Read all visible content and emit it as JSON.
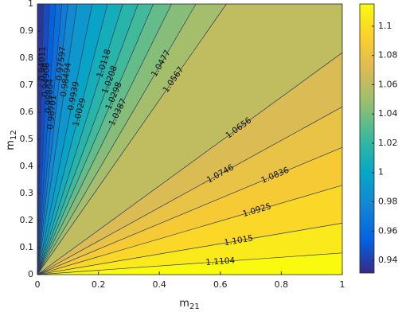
{
  "chart_data": {
    "type": "contour",
    "xlabel": [
      "m",
      "21"
    ],
    "ylabel": [
      "m",
      "12"
    ],
    "xlim": [
      0,
      1
    ],
    "ylim": [
      0,
      1
    ],
    "xticks": [
      0,
      0.2,
      0.4,
      0.6,
      0.8,
      1
    ],
    "yticks": [
      0,
      0.1,
      0.2,
      0.3,
      0.4,
      0.5,
      0.6,
      0.7,
      0.8,
      0.9,
      1
    ],
    "clim": [
      0.9313,
      1.1152
    ],
    "cticks": [
      0.94,
      0.96,
      0.98,
      1,
      1.02,
      1.04,
      1.06,
      1.08,
      1.1
    ],
    "colormap": [
      "#352a87",
      "#0363e1",
      "#1485d4",
      "#06a7c6",
      "#38b99e",
      "#92bf73",
      "#d9ba56",
      "#fcce2e",
      "#f9fb0e"
    ],
    "line_color": "#2b3a5c",
    "contours": [
      {
        "level": 0.94011,
        "end": [
          0.02,
          1
        ]
      },
      {
        "level": 0.94908,
        "end": [
          0.04,
          1
        ]
      },
      {
        "level": 0.95804,
        "end": [
          0.06,
          1
        ]
      },
      {
        "level": 0.96701,
        "end": [
          0.08,
          1
        ]
      },
      {
        "level": 0.97597,
        "end": [
          0.1,
          1
        ]
      },
      {
        "level": 0.98494,
        "end": [
          0.13,
          1
        ]
      },
      {
        "level": 0.9939,
        "end": [
          0.18,
          1
        ]
      },
      {
        "level": 1.0029,
        "end": [
          0.23,
          1
        ]
      },
      {
        "level": 1.0118,
        "end": [
          0.28,
          1
        ]
      },
      {
        "level": 1.0208,
        "end": [
          0.33,
          1
        ]
      },
      {
        "level": 1.0298,
        "end": [
          0.38,
          1
        ]
      },
      {
        "level": 1.0387,
        "end": [
          0.44,
          1
        ]
      },
      {
        "level": 1.0477,
        "end": [
          0.52,
          1
        ]
      },
      {
        "level": 1.0567,
        "end": [
          0.62,
          1
        ]
      },
      {
        "level": 1.0656,
        "end": [
          1,
          0.82
        ]
      },
      {
        "level": 1.0746,
        "end": [
          1,
          0.62
        ]
      },
      {
        "level": 1.0836,
        "end": [
          1,
          0.47
        ]
      },
      {
        "level": 1.0925,
        "end": [
          1,
          0.33
        ]
      },
      {
        "level": 1.1015,
        "end": [
          1,
          0.19
        ]
      },
      {
        "level": 1.1104,
        "end": [
          1,
          0.08
        ]
      }
    ]
  }
}
